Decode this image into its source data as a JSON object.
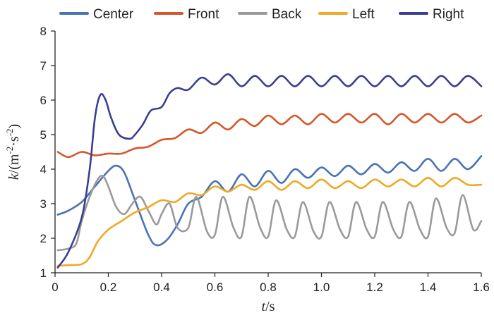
{
  "chart_data": {
    "type": "line",
    "title": "",
    "xlabel": {
      "italic": "t",
      "rest": "/s"
    },
    "ylabel": {
      "italic": "k",
      "rest": "/(m",
      "sup1": "-2",
      "mid": "·s",
      "sup2": "-2",
      "end": ")"
    },
    "xlim": [
      0,
      1.6
    ],
    "ylim": [
      1,
      8
    ],
    "xticks": [
      "0",
      "0.2",
      "0.4",
      "0.6",
      "0.8",
      "1.0",
      "1.2",
      "1.4",
      "1.6"
    ],
    "yticks": [
      "1",
      "2",
      "3",
      "4",
      "5",
      "6",
      "7",
      "8"
    ],
    "grid": false,
    "legend_position": "top",
    "series": [
      {
        "name": "Center",
        "color": "#4a73b5",
        "x": [
          0.01,
          0.05,
          0.1,
          0.15,
          0.2,
          0.23,
          0.26,
          0.3,
          0.35,
          0.38,
          0.42,
          0.46,
          0.5,
          0.55,
          0.6,
          0.65,
          0.7,
          0.75,
          0.8,
          0.85,
          0.9,
          0.95,
          1.0,
          1.05,
          1.1,
          1.15,
          1.2,
          1.25,
          1.3,
          1.35,
          1.4,
          1.45,
          1.5,
          1.55,
          1.6
        ],
        "y": [
          2.68,
          2.8,
          3.05,
          3.5,
          3.95,
          4.1,
          3.9,
          3.1,
          2.1,
          1.8,
          1.95,
          2.4,
          3.0,
          3.2,
          3.65,
          3.35,
          3.85,
          3.5,
          3.95,
          3.6,
          4.0,
          3.75,
          4.05,
          3.8,
          4.1,
          3.85,
          4.15,
          3.9,
          4.2,
          3.95,
          4.3,
          3.95,
          4.3,
          4.0,
          4.38
        ]
      },
      {
        "name": "Front",
        "color": "#d5572b",
        "x": [
          0.01,
          0.05,
          0.1,
          0.15,
          0.2,
          0.25,
          0.3,
          0.35,
          0.4,
          0.45,
          0.5,
          0.55,
          0.6,
          0.65,
          0.7,
          0.75,
          0.8,
          0.85,
          0.9,
          0.95,
          1.0,
          1.05,
          1.1,
          1.15,
          1.2,
          1.25,
          1.3,
          1.35,
          1.4,
          1.45,
          1.5,
          1.55,
          1.6
        ],
        "y": [
          4.5,
          4.35,
          4.5,
          4.4,
          4.45,
          4.45,
          4.6,
          4.65,
          4.85,
          4.9,
          5.15,
          5.05,
          5.35,
          5.15,
          5.45,
          5.25,
          5.55,
          5.3,
          5.55,
          5.3,
          5.6,
          5.35,
          5.6,
          5.35,
          5.6,
          5.3,
          5.6,
          5.35,
          5.6,
          5.35,
          5.6,
          5.35,
          5.55
        ]
      },
      {
        "name": "Back",
        "color": "#9a9a9a",
        "x": [
          0.01,
          0.05,
          0.08,
          0.1,
          0.13,
          0.16,
          0.18,
          0.2,
          0.23,
          0.26,
          0.29,
          0.32,
          0.35,
          0.38,
          0.4,
          0.43,
          0.46,
          0.5,
          0.53,
          0.57,
          0.6,
          0.63,
          0.67,
          0.7,
          0.73,
          0.77,
          0.8,
          0.83,
          0.87,
          0.9,
          0.93,
          0.97,
          1.0,
          1.03,
          1.07,
          1.1,
          1.13,
          1.17,
          1.2,
          1.23,
          1.27,
          1.3,
          1.33,
          1.37,
          1.4,
          1.43,
          1.47,
          1.5,
          1.53,
          1.57,
          1.6
        ],
        "y": [
          1.65,
          1.7,
          1.85,
          2.5,
          3.2,
          3.7,
          3.8,
          3.5,
          2.9,
          2.7,
          3.0,
          3.2,
          2.8,
          2.4,
          2.7,
          3.0,
          2.3,
          2.3,
          3.2,
          2.2,
          2.1,
          3.2,
          2.3,
          2.05,
          3.2,
          2.3,
          2.05,
          3.1,
          2.25,
          2.05,
          3.05,
          2.2,
          2.05,
          3.05,
          2.25,
          2.05,
          3.05,
          2.25,
          2.05,
          3.05,
          2.25,
          2.05,
          3.05,
          2.25,
          2.05,
          3.15,
          2.3,
          2.15,
          3.25,
          2.25,
          2.5
        ]
      },
      {
        "name": "Left",
        "color": "#f0a926",
        "x": [
          0.01,
          0.05,
          0.1,
          0.13,
          0.16,
          0.2,
          0.25,
          0.3,
          0.35,
          0.4,
          0.45,
          0.5,
          0.55,
          0.6,
          0.65,
          0.7,
          0.75,
          0.8,
          0.85,
          0.9,
          0.95,
          1.0,
          1.05,
          1.1,
          1.15,
          1.2,
          1.25,
          1.3,
          1.35,
          1.4,
          1.45,
          1.5,
          1.55,
          1.6
        ],
        "y": [
          1.2,
          1.22,
          1.25,
          1.45,
          1.9,
          2.25,
          2.5,
          2.75,
          2.9,
          3.1,
          3.05,
          3.3,
          3.25,
          3.5,
          3.35,
          3.55,
          3.4,
          3.65,
          3.4,
          3.65,
          3.45,
          3.7,
          3.45,
          3.65,
          3.45,
          3.7,
          3.5,
          3.7,
          3.5,
          3.75,
          3.5,
          3.75,
          3.55,
          3.55
        ]
      },
      {
        "name": "Right",
        "color": "#3b3f91",
        "x": [
          0.01,
          0.05,
          0.1,
          0.13,
          0.15,
          0.17,
          0.19,
          0.21,
          0.24,
          0.28,
          0.3,
          0.33,
          0.36,
          0.4,
          0.43,
          0.46,
          0.5,
          0.55,
          0.6,
          0.65,
          0.7,
          0.75,
          0.8,
          0.85,
          0.9,
          0.95,
          1.0,
          1.05,
          1.1,
          1.15,
          1.2,
          1.25,
          1.3,
          1.35,
          1.4,
          1.45,
          1.5,
          1.55,
          1.6
        ],
        "y": [
          1.15,
          1.6,
          2.6,
          4.0,
          5.5,
          6.15,
          6.0,
          5.5,
          5.0,
          4.88,
          5.0,
          5.3,
          5.7,
          5.8,
          6.2,
          6.35,
          6.3,
          6.65,
          6.45,
          6.75,
          6.4,
          6.7,
          6.4,
          6.7,
          6.4,
          6.7,
          6.4,
          6.7,
          6.4,
          6.7,
          6.4,
          6.7,
          6.4,
          6.7,
          6.4,
          6.7,
          6.4,
          6.7,
          6.4
        ]
      }
    ]
  }
}
